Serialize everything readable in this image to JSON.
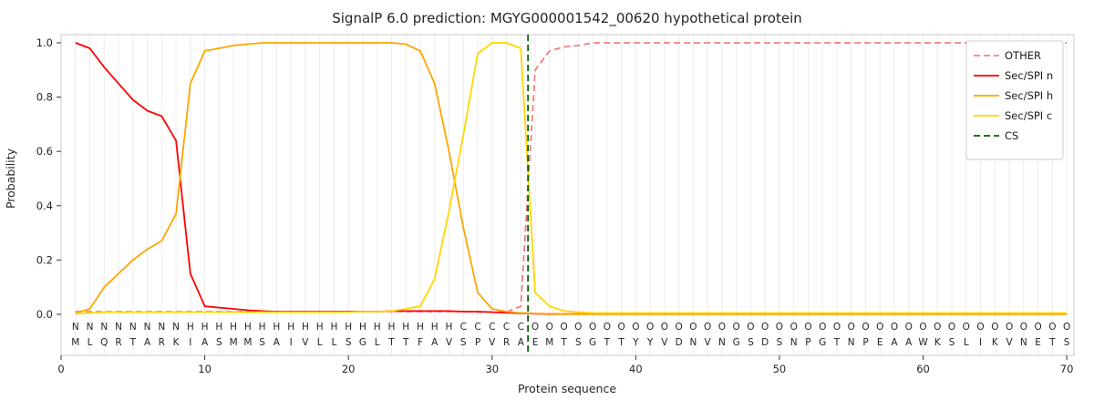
{
  "chart_data": {
    "type": "line",
    "title": "SignalP 6.0 prediction: MGYG000001542_00620 hypothetical protein",
    "xlabel": "Protein sequence",
    "ylabel": "Probability",
    "xlim": [
      0,
      70.5
    ],
    "xticks": [
      0,
      10,
      20,
      30,
      40,
      50,
      60,
      70
    ],
    "yticks": [
      0.0,
      0.2,
      0.4,
      0.6,
      0.8,
      1.0
    ],
    "grid": "vertical-per-residue",
    "legend_position": "upper-right",
    "x_start": 1,
    "series": [
      {
        "name": "OTHER",
        "color": "#f08080",
        "dash": "7 4",
        "values": [
          0.01,
          0.01,
          0.01,
          0.01,
          0.01,
          0.01,
          0.01,
          0.01,
          0.01,
          0.01,
          0.01,
          0.01,
          0.01,
          0.01,
          0.01,
          0.01,
          0.01,
          0.01,
          0.01,
          0.01,
          0.01,
          0.01,
          0.01,
          0.01,
          0.01,
          0.01,
          0.01,
          0.01,
          0.008,
          0.008,
          0.008,
          0.03,
          0.9,
          0.97,
          0.985,
          0.99,
          1.0,
          1.0,
          1.0,
          1.0,
          1.0,
          1.0,
          1.0,
          1.0,
          1.0,
          1.0,
          1.0,
          1.0,
          1.0,
          1.0,
          1.0,
          1.0,
          1.0,
          1.0,
          1.0,
          1.0,
          1.0,
          1.0,
          1.0,
          1.0,
          1.0,
          1.0,
          1.0,
          1.0,
          1.0,
          1.0,
          1.0,
          1.0,
          1.0,
          1.0
        ]
      },
      {
        "name": "Sec/SPI n",
        "color": "#ff0000",
        "dash": null,
        "values": [
          1.0,
          0.98,
          0.91,
          0.85,
          0.79,
          0.75,
          0.73,
          0.64,
          0.15,
          0.03,
          0.025,
          0.02,
          0.015,
          0.012,
          0.01,
          0.01,
          0.01,
          0.01,
          0.01,
          0.01,
          0.01,
          0.01,
          0.012,
          0.012,
          0.012,
          0.012,
          0.012,
          0.01,
          0.01,
          0.008,
          0.006,
          0.004,
          0.002,
          0.001,
          0.001,
          0.001,
          0.001,
          0.001,
          0.001,
          0.001,
          0.001,
          0.001,
          0.001,
          0.001,
          0.001,
          0.001,
          0.001,
          0.001,
          0.001,
          0.001,
          0.001,
          0.001,
          0.001,
          0.001,
          0.001,
          0.001,
          0.001,
          0.001,
          0.001,
          0.001,
          0.001,
          0.001,
          0.001,
          0.001,
          0.001,
          0.001,
          0.001,
          0.001,
          0.001,
          0.001
        ]
      },
      {
        "name": "Sec/SPI h",
        "color": "#ffa500",
        "dash": null,
        "values": [
          0.005,
          0.02,
          0.1,
          0.15,
          0.2,
          0.24,
          0.27,
          0.37,
          0.85,
          0.97,
          0.98,
          0.99,
          0.995,
          1.0,
          1.0,
          1.0,
          1.0,
          1.0,
          1.0,
          1.0,
          1.0,
          1.0,
          1.0,
          0.995,
          0.97,
          0.85,
          0.6,
          0.32,
          0.08,
          0.02,
          0.01,
          0.005,
          0.003,
          0.002,
          0.001,
          0.001,
          0.001,
          0.001,
          0.001,
          0.001,
          0.001,
          0.001,
          0.001,
          0.001,
          0.001,
          0.001,
          0.001,
          0.001,
          0.001,
          0.001,
          0.001,
          0.001,
          0.001,
          0.001,
          0.001,
          0.001,
          0.001,
          0.001,
          0.001,
          0.001,
          0.001,
          0.001,
          0.001,
          0.001,
          0.001,
          0.001,
          0.001,
          0.001,
          0.001,
          0.001
        ]
      },
      {
        "name": "Sec/SPI c",
        "color": "#ffd700",
        "dash": null,
        "values": [
          0.003,
          0.005,
          0.008,
          0.008,
          0.008,
          0.008,
          0.008,
          0.008,
          0.008,
          0.008,
          0.008,
          0.008,
          0.008,
          0.008,
          0.008,
          0.008,
          0.008,
          0.008,
          0.008,
          0.008,
          0.01,
          0.01,
          0.012,
          0.02,
          0.03,
          0.13,
          0.38,
          0.66,
          0.96,
          1.0,
          1.0,
          0.98,
          0.08,
          0.03,
          0.012,
          0.008,
          0.005,
          0.005,
          0.005,
          0.005,
          0.005,
          0.005,
          0.005,
          0.005,
          0.005,
          0.005,
          0.005,
          0.005,
          0.005,
          0.005,
          0.005,
          0.005,
          0.005,
          0.005,
          0.005,
          0.005,
          0.005,
          0.005,
          0.005,
          0.005,
          0.005,
          0.005,
          0.005,
          0.005,
          0.005,
          0.005,
          0.005,
          0.005,
          0.005,
          0.005
        ]
      }
    ],
    "cs": {
      "name": "CS",
      "position": 32.5,
      "color": "#006400",
      "dash": "7 4"
    },
    "sequence": "MLQRTARKIASMMSAIVLLSGLTTFAVSPVRAEMTSGTTYYVDNVNGSDSNPGTNPEAAWKSLIKVNETS",
    "region_labels": "NNNNNNNNHHHHHHHHHHHHHHHHHHHCCCCCOOOOOOOOOOOOOOOOOOOOOOOOOOOOOOOOOOOOOO",
    "region_colors": {
      "N": "#ff0000",
      "H": "#ffa500",
      "C": "#ffd700",
      "O": "#808080"
    },
    "legend": [
      "OTHER",
      "Sec/SPI n",
      "Sec/SPI h",
      "Sec/SPI c",
      "CS"
    ]
  }
}
